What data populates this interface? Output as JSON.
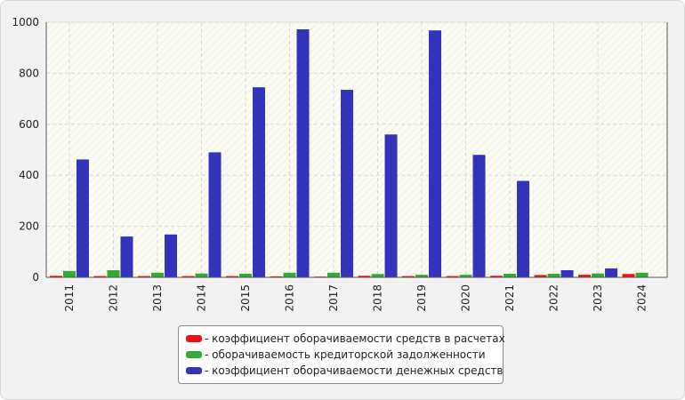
{
  "chart_data": {
    "type": "bar",
    "title": "",
    "xlabel": "",
    "ylabel": "",
    "ylim": [
      0,
      1000
    ],
    "yticks": [
      0,
      200,
      400,
      600,
      800,
      1000
    ],
    "grid": true,
    "legend_position": "bottom",
    "categories": [
      "2011",
      "2012",
      "2013",
      "2014",
      "2015",
      "2016",
      "2017",
      "2018",
      "2019",
      "2020",
      "2021",
      "2022",
      "2023",
      "2024"
    ],
    "series": [
      {
        "name": "- коэффициент оборачиваемости средств в расчетах",
        "color": "#ee1111",
        "values": [
          6,
          5,
          5,
          5,
          5,
          4,
          3,
          6,
          5,
          5,
          6,
          9,
          10,
          13
        ]
      },
      {
        "name": "- оборачиваемость кредиторской задолженности",
        "color": "#33aa33",
        "values": [
          25,
          28,
          18,
          15,
          14,
          18,
          18,
          13,
          10,
          10,
          14,
          14,
          15,
          18
        ]
      },
      {
        "name": "- коэффициент оборачиваемости денежных средств",
        "color": "#3333bb",
        "values": [
          462,
          160,
          168,
          490,
          745,
          972,
          735,
          560,
          968,
          480,
          378,
          28,
          35,
          0
        ]
      }
    ]
  }
}
